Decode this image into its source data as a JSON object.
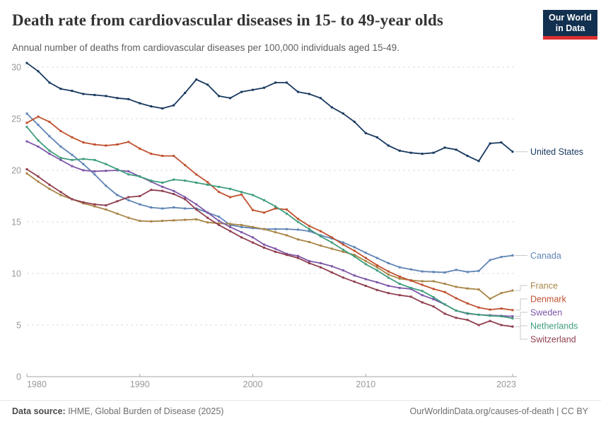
{
  "header": {
    "title": "Death rate from cardiovascular diseases in 15- to 49-year olds",
    "subtitle": "Annual number of deaths from cardiovascular diseases per 100,000 individuals aged 15-49.",
    "logo_line1": "Our World",
    "logo_line2": "in Data",
    "logo_bg": "#12304f",
    "logo_stripe": "#dc2f2f"
  },
  "footer": {
    "source_label": "Data source:",
    "source_text": " IHME, Global Burden of Disease (2025)",
    "url": "OurWorldinData.org/causes-of-death",
    "separator": " | ",
    "license": "CC BY"
  },
  "chart_data": {
    "type": "line",
    "x_label": "",
    "y_label": "",
    "x": [
      1980,
      1981,
      1982,
      1983,
      1984,
      1985,
      1986,
      1987,
      1988,
      1989,
      1990,
      1991,
      1992,
      1993,
      1994,
      1995,
      1996,
      1997,
      1998,
      1999,
      2000,
      2001,
      2002,
      2003,
      2004,
      2005,
      2006,
      2007,
      2008,
      2009,
      2010,
      2011,
      2012,
      2013,
      2014,
      2015,
      2016,
      2017,
      2018,
      2019,
      2020,
      2021,
      2022,
      2023
    ],
    "xticks": [
      1980,
      1990,
      2000,
      2010,
      2023
    ],
    "yticks": [
      0,
      5,
      10,
      15,
      20,
      25,
      30
    ],
    "ylim": [
      0,
      30.8
    ],
    "grid": "dashed-horizontal",
    "legend_position": "right-edge-labels",
    "series": [
      {
        "name": "United States",
        "color": "#18395f",
        "values": [
          30.4,
          29.6,
          28.5,
          27.9,
          27.7,
          27.4,
          27.3,
          27.2,
          27.0,
          26.9,
          26.5,
          26.2,
          26.0,
          26.3,
          27.5,
          28.8,
          28.3,
          27.2,
          27.0,
          27.6,
          27.8,
          28.0,
          28.5,
          28.5,
          27.6,
          27.4,
          27.0,
          26.1,
          25.5,
          24.7,
          23.6,
          23.2,
          22.4,
          21.9,
          21.7,
          21.6,
          21.7,
          22.2,
          22.0,
          21.4,
          20.9,
          22.6,
          22.7,
          21.8
        ]
      },
      {
        "name": "Canada",
        "color": "#5f84b5",
        "values": [
          25.5,
          24.4,
          23.3,
          22.3,
          21.5,
          20.6,
          19.6,
          18.5,
          17.6,
          17.1,
          16.7,
          16.4,
          16.3,
          16.4,
          16.3,
          16.3,
          15.9,
          15.5,
          14.7,
          14.5,
          14.4,
          14.3,
          14.3,
          14.3,
          14.25,
          14.1,
          13.7,
          13.4,
          13.0,
          12.55,
          12.0,
          11.5,
          11.0,
          10.6,
          10.4,
          10.2,
          10.15,
          10.1,
          10.35,
          10.15,
          10.25,
          11.3,
          11.6,
          11.75
        ]
      },
      {
        "name": "France",
        "color": "#a98547",
        "values": [
          19.7,
          18.9,
          18.2,
          17.6,
          17.2,
          16.8,
          16.5,
          16.2,
          15.8,
          15.4,
          15.1,
          15.05,
          15.1,
          15.15,
          15.2,
          15.25,
          14.95,
          14.85,
          14.8,
          14.7,
          14.5,
          14.3,
          14.0,
          13.7,
          13.3,
          13.05,
          12.7,
          12.4,
          12.1,
          11.8,
          11.2,
          10.6,
          9.9,
          9.5,
          9.35,
          9.25,
          9.25,
          9.0,
          8.7,
          8.55,
          8.45,
          7.55,
          8.1,
          8.35
        ]
      },
      {
        "name": "Denmark",
        "color": "#c0512f",
        "values": [
          24.6,
          25.2,
          24.7,
          23.8,
          23.2,
          22.7,
          22.5,
          22.4,
          22.5,
          22.75,
          22.1,
          21.6,
          21.4,
          21.4,
          20.5,
          19.6,
          18.85,
          17.9,
          17.4,
          17.65,
          16.15,
          15.9,
          16.3,
          16.2,
          15.3,
          14.6,
          14.1,
          13.5,
          12.8,
          12.2,
          11.5,
          10.8,
          10.2,
          9.7,
          9.3,
          8.9,
          8.5,
          8.2,
          7.6,
          7.1,
          6.7,
          6.5,
          6.6,
          6.45
        ]
      },
      {
        "name": "Sweden",
        "color": "#7e57a8",
        "values": [
          22.8,
          22.3,
          21.6,
          21.0,
          20.4,
          20.0,
          19.9,
          19.95,
          20.0,
          19.9,
          19.4,
          18.9,
          18.4,
          18.0,
          17.4,
          16.7,
          15.9,
          15.1,
          14.5,
          14.0,
          13.5,
          12.8,
          12.4,
          11.9,
          11.7,
          11.2,
          11.0,
          10.7,
          10.3,
          9.8,
          9.45,
          9.15,
          8.8,
          8.6,
          8.5,
          7.9,
          7.5,
          7.0,
          6.4,
          6.1,
          6.0,
          5.95,
          5.9,
          5.85
        ]
      },
      {
        "name": "Netherlands",
        "color": "#3f9e7d",
        "values": [
          24.2,
          22.9,
          21.9,
          21.2,
          21.0,
          21.1,
          21.0,
          20.6,
          20.1,
          19.6,
          19.4,
          19.0,
          18.8,
          19.1,
          19.0,
          18.8,
          18.6,
          18.4,
          18.2,
          17.9,
          17.6,
          17.1,
          16.5,
          15.8,
          15.0,
          14.3,
          13.6,
          13.0,
          12.3,
          11.65,
          10.9,
          10.3,
          9.6,
          9.0,
          8.6,
          8.3,
          7.7,
          7.0,
          6.4,
          6.15,
          6.0,
          5.9,
          5.85,
          5.65
        ]
      },
      {
        "name": "Switzerland",
        "color": "#903f4f",
        "values": [
          20.1,
          19.4,
          18.6,
          17.9,
          17.2,
          16.9,
          16.7,
          16.6,
          17.0,
          17.4,
          17.5,
          18.1,
          18.0,
          17.7,
          17.2,
          16.2,
          15.4,
          14.7,
          14.1,
          13.5,
          13.0,
          12.5,
          12.1,
          11.8,
          11.5,
          11.0,
          10.6,
          10.1,
          9.6,
          9.2,
          8.8,
          8.4,
          8.1,
          7.9,
          7.75,
          7.2,
          6.8,
          6.1,
          5.7,
          5.5,
          5.0,
          5.4,
          5.0,
          4.85
        ]
      }
    ]
  }
}
